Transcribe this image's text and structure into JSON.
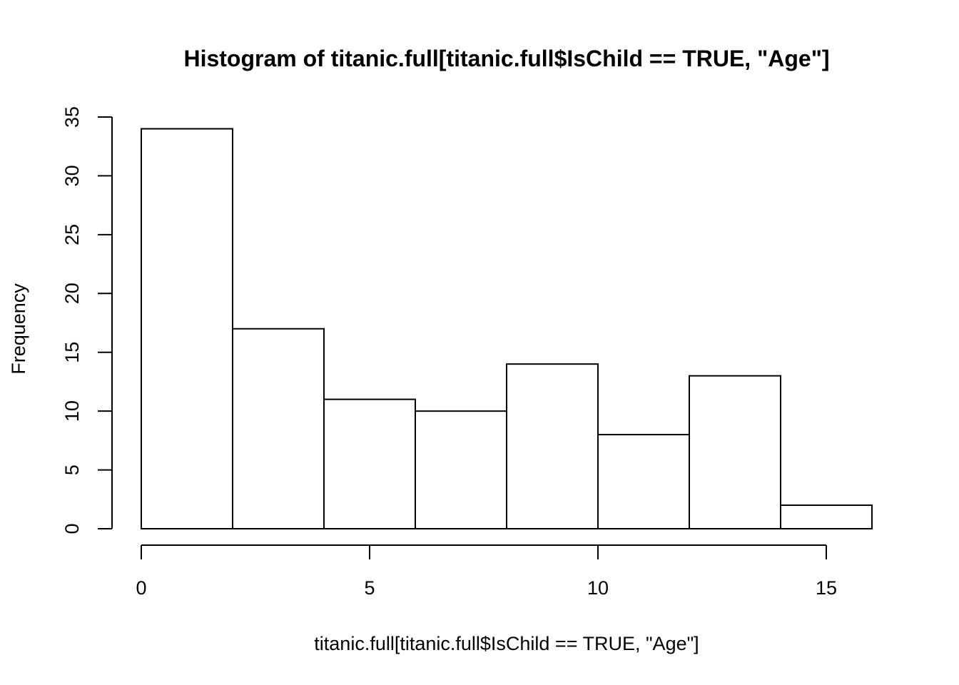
{
  "chart_data": {
    "type": "bar",
    "title": "Histogram of titanic.full[titanic.full$IsChild == TRUE, \"Age\"]",
    "xlabel": "titanic.full[titanic.full$IsChild == TRUE, \"Age\"]",
    "ylabel": "Frequency",
    "bins": [
      {
        "start": 0,
        "end": 2,
        "count": 34
      },
      {
        "start": 2,
        "end": 4,
        "count": 17
      },
      {
        "start": 4,
        "end": 6,
        "count": 11
      },
      {
        "start": 6,
        "end": 8,
        "count": 10
      },
      {
        "start": 8,
        "end": 10,
        "count": 14
      },
      {
        "start": 10,
        "end": 12,
        "count": 8
      },
      {
        "start": 12,
        "end": 14,
        "count": 13
      },
      {
        "start": 14,
        "end": 16,
        "count": 2
      }
    ],
    "xlim": [
      0,
      16
    ],
    "ylim": [
      0,
      35
    ],
    "xticks": [
      0,
      5,
      10,
      15
    ],
    "yticks": [
      0,
      5,
      10,
      15,
      20,
      25,
      30,
      35
    ],
    "grid": false,
    "bar_fill": "#ffffff",
    "bar_stroke": "#000000"
  }
}
